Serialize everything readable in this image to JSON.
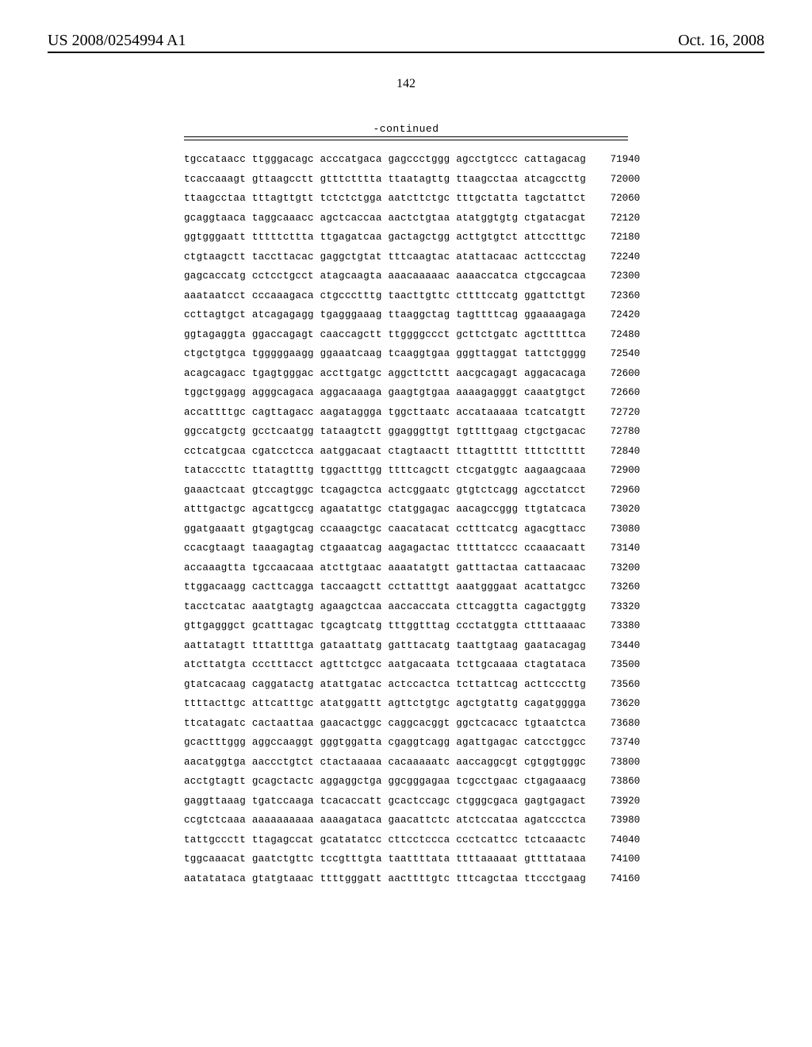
{
  "header": {
    "publication_number": "US 2008/0254994 A1",
    "publication_date": "Oct. 16, 2008"
  },
  "page_number": "142",
  "continued_label": "-continued",
  "sequence": {
    "font_family": "Courier New",
    "font_size_pt": 12.5,
    "text_color": "#000000",
    "background_color": "#ffffff",
    "rows": [
      {
        "groups": [
          "tgccataacc",
          "ttgggacagc",
          "acccatgaca",
          "gagccctggg",
          "agcctgtccc",
          "cattagacag"
        ],
        "pos": "71940"
      },
      {
        "groups": [
          "tcaccaaagt",
          "gttaagcctt",
          "gtttctttta",
          "ttaatagttg",
          "ttaagcctaa",
          "atcagccttg"
        ],
        "pos": "72000"
      },
      {
        "groups": [
          "ttaagcctaa",
          "tttagttgtt",
          "tctctctgga",
          "aatcttctgc",
          "tttgctatta",
          "tagctattct"
        ],
        "pos": "72060"
      },
      {
        "groups": [
          "gcaggtaaca",
          "taggcaaacc",
          "agctcaccaa",
          "aactctgtaa",
          "atatggtgtg",
          "ctgatacgat"
        ],
        "pos": "72120"
      },
      {
        "groups": [
          "ggtgggaatt",
          "tttttcttta",
          "ttgagatcaa",
          "gactagctgg",
          "acttgtgtct",
          "attcctttgc"
        ],
        "pos": "72180"
      },
      {
        "groups": [
          "ctgtaagctt",
          "taccttacac",
          "gaggctgtat",
          "tttcaagtac",
          "atattacaac",
          "acttccctag"
        ],
        "pos": "72240"
      },
      {
        "groups": [
          "gagcaccatg",
          "cctcctgcct",
          "atagcaagta",
          "aaacaaaaac",
          "aaaaccatca",
          "ctgccagcaa"
        ],
        "pos": "72300"
      },
      {
        "groups": [
          "aaataatcct",
          "cccaaagaca",
          "ctgccctttg",
          "taacttgttc",
          "cttttccatg",
          "ggattcttgt"
        ],
        "pos": "72360"
      },
      {
        "groups": [
          "ccttagtgct",
          "atcagagagg",
          "tgagggaaag",
          "ttaaggctag",
          "tagttttcag",
          "ggaaaagaga"
        ],
        "pos": "72420"
      },
      {
        "groups": [
          "ggtagaggta",
          "ggaccagagt",
          "caaccagctt",
          "ttggggccct",
          "gcttctgatc",
          "agctttttca"
        ],
        "pos": "72480"
      },
      {
        "groups": [
          "ctgctgtgca",
          "tgggggaagg",
          "ggaaatcaag",
          "tcaaggtgaa",
          "gggttaggat",
          "tattctgggg"
        ],
        "pos": "72540"
      },
      {
        "groups": [
          "acagcagacc",
          "tgagtgggac",
          "accttgatgc",
          "aggcttcttt",
          "aacgcagagt",
          "aggacacaga"
        ],
        "pos": "72600"
      },
      {
        "groups": [
          "tggctggagg",
          "agggcagaca",
          "aggacaaaga",
          "gaagtgtgaa",
          "aaaagagggt",
          "caaatgtgct"
        ],
        "pos": "72660"
      },
      {
        "groups": [
          "accattttgc",
          "cagttagacc",
          "aagataggga",
          "tggcttaatc",
          "accataaaaa",
          "tcatcatgtt"
        ],
        "pos": "72720"
      },
      {
        "groups": [
          "ggccatgctg",
          "gcctcaatgg",
          "tataagtctt",
          "ggagggttgt",
          "tgttttgaag",
          "ctgctgacac"
        ],
        "pos": "72780"
      },
      {
        "groups": [
          "cctcatgcaa",
          "cgatcctcca",
          "aatggacaat",
          "ctagtaactt",
          "tttagttttt",
          "ttttcttttt"
        ],
        "pos": "72840"
      },
      {
        "groups": [
          "tatacccttc",
          "ttatagtttg",
          "tggactttgg",
          "ttttcagctt",
          "ctcgatggtc",
          "aagaagcaaa"
        ],
        "pos": "72900"
      },
      {
        "groups": [
          "gaaactcaat",
          "gtccagtggc",
          "tcagagctca",
          "actcggaatc",
          "gtgtctcagg",
          "agcctatcct"
        ],
        "pos": "72960"
      },
      {
        "groups": [
          "atttgactgc",
          "agcattgccg",
          "agaatattgc",
          "ctatggagac",
          "aacagccggg",
          "ttgtatcaca"
        ],
        "pos": "73020"
      },
      {
        "groups": [
          "ggatgaaatt",
          "gtgagtgcag",
          "ccaaagctgc",
          "caacatacat",
          "cctttcatcg",
          "agacgttacc"
        ],
        "pos": "73080"
      },
      {
        "groups": [
          "ccacgtaagt",
          "taaagagtag",
          "ctgaaatcag",
          "aagagactac",
          "tttttatccc",
          "ccaaacaatt"
        ],
        "pos": "73140"
      },
      {
        "groups": [
          "accaaagtta",
          "tgccaacaaa",
          "atcttgtaac",
          "aaaatatgtt",
          "gatttactaa",
          "cattaacaac"
        ],
        "pos": "73200"
      },
      {
        "groups": [
          "ttggacaagg",
          "cacttcagga",
          "taccaagctt",
          "ccttatttgt",
          "aaatgggaat",
          "acattatgcc"
        ],
        "pos": "73260"
      },
      {
        "groups": [
          "tacctcatac",
          "aaatgtagtg",
          "agaagctcaa",
          "aaccaccata",
          "cttcaggtta",
          "cagactggtg"
        ],
        "pos": "73320"
      },
      {
        "groups": [
          "gttgagggct",
          "gcatttagac",
          "tgcagtcatg",
          "tttggtttag",
          "ccctatggta",
          "cttttaaaac"
        ],
        "pos": "73380"
      },
      {
        "groups": [
          "aattatagtt",
          "tttattttga",
          "gataattatg",
          "gatttacatg",
          "taattgtaag",
          "gaatacagag"
        ],
        "pos": "73440"
      },
      {
        "groups": [
          "atcttatgta",
          "ccctttacct",
          "agtttctgcc",
          "aatgacaata",
          "tcttgcaaaa",
          "ctagtataca"
        ],
        "pos": "73500"
      },
      {
        "groups": [
          "gtatcacaag",
          "caggatactg",
          "atattgatac",
          "actccactca",
          "tcttattcag",
          "acttcccttg"
        ],
        "pos": "73560"
      },
      {
        "groups": [
          "ttttacttgc",
          "attcatttgc",
          "atatggattt",
          "agttctgtgc",
          "agctgtattg",
          "cagatgggga"
        ],
        "pos": "73620"
      },
      {
        "groups": [
          "ttcatagatc",
          "cactaattaa",
          "gaacactggc",
          "caggcacggt",
          "ggctcacacc",
          "tgtaatctca"
        ],
        "pos": "73680"
      },
      {
        "groups": [
          "gcactttggg",
          "aggccaaggt",
          "gggtggatta",
          "cgaggtcagg",
          "agattgagac",
          "catcctggcc"
        ],
        "pos": "73740"
      },
      {
        "groups": [
          "aacatggtga",
          "aaccctgtct",
          "ctactaaaaa",
          "cacaaaaatc",
          "aaccaggcgt",
          "cgtggtgggc"
        ],
        "pos": "73800"
      },
      {
        "groups": [
          "acctgtagtt",
          "gcagctactc",
          "aggaggctga",
          "ggcgggagaa",
          "tcgcctgaac",
          "ctgagaaacg"
        ],
        "pos": "73860"
      },
      {
        "groups": [
          "gaggttaaag",
          "tgatccaaga",
          "tcacaccatt",
          "gcactccagc",
          "ctgggcgaca",
          "gagtgagact"
        ],
        "pos": "73920"
      },
      {
        "groups": [
          "ccgtctcaaa",
          "aaaaaaaaaa",
          "aaaagataca",
          "gaacattctc",
          "atctccataa",
          "agatccctca"
        ],
        "pos": "73980"
      },
      {
        "groups": [
          "tattgccctt",
          "ttagagccat",
          "gcatatatcc",
          "cttcctccca",
          "ccctcattcc",
          "tctcaaactc"
        ],
        "pos": "74040"
      },
      {
        "groups": [
          "tggcaaacat",
          "gaatctgttc",
          "tccgtttgta",
          "taattttata",
          "ttttaaaaat",
          "gttttataaa"
        ],
        "pos": "74100"
      },
      {
        "groups": [
          "aatatataca",
          "gtatgtaaac",
          "ttttgggatt",
          "aacttttgtc",
          "tttcagctaa",
          "ttccctgaag"
        ],
        "pos": "74160"
      }
    ]
  }
}
